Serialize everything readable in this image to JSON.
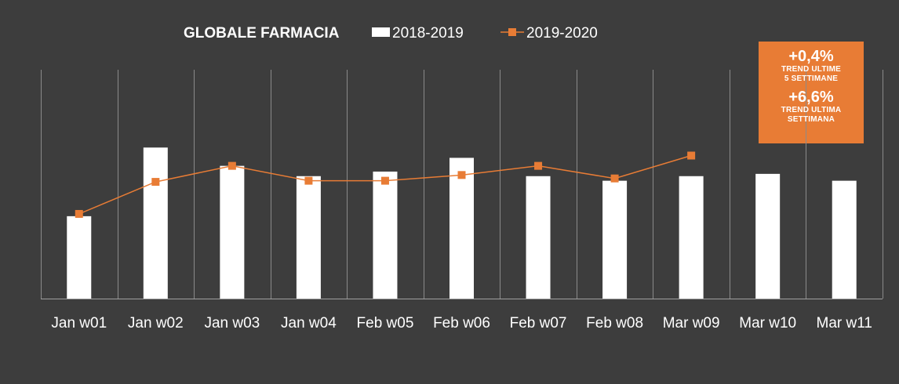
{
  "chart_data": {
    "type": "bar",
    "title": "GLOBALE FARMACIA",
    "categories": [
      "Jan w01",
      "Jan w02",
      "Jan w03",
      "Jan w04",
      "Feb w05",
      "Feb w06",
      "Feb w07",
      "Feb w08",
      "Mar w09",
      "Mar w10",
      "Mar w11"
    ],
    "series": [
      {
        "name": "2018-2019",
        "kind": "bar",
        "values": [
          36,
          66,
          58,
          53.5,
          55.5,
          61.5,
          53.5,
          51.5,
          53.5,
          54.5,
          51.5
        ]
      },
      {
        "name": "2019-2020",
        "kind": "line-marker",
        "values": [
          37,
          51,
          58,
          51.5,
          51.5,
          54,
          58,
          52.5,
          62.5,
          null,
          null
        ]
      }
    ],
    "ylim": [
      0,
      100
    ],
    "grid": "vertical",
    "legend": "top"
  },
  "callout": {
    "value_1": "+0,4%",
    "label_1a": "TREND ULTIME",
    "label_1b": "5 SETTIMANE",
    "value_2": "+6,6%",
    "label_2a": "TREND ULTIMA",
    "label_2b": "SETTIMANA"
  },
  "colors": {
    "background": "#3d3d3d",
    "bar": "#ffffff",
    "line": "#e87c35",
    "callout": "#e87c35",
    "grid": "#8a8a8a"
  }
}
